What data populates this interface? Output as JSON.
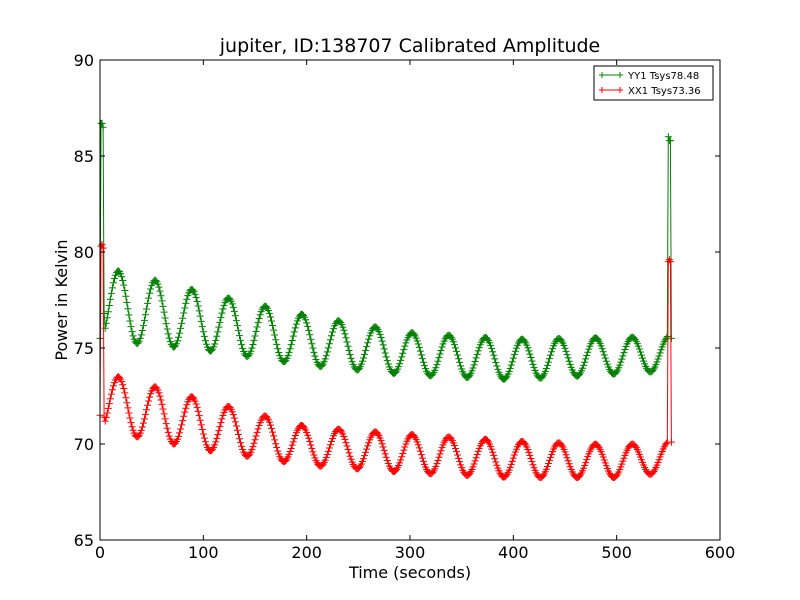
{
  "chart_data": {
    "type": "line",
    "title": "jupiter, ID:138707 Calibrated Amplitude",
    "xlabel": "Time (seconds)",
    "ylabel": "Power in Kelvin",
    "xlim": [
      0,
      600
    ],
    "ylim": [
      65,
      90
    ],
    "xticks": [
      "0",
      "100",
      "200",
      "300",
      "400",
      "500",
      "600"
    ],
    "yticks": [
      "65",
      "70",
      "75",
      "80",
      "85",
      "90"
    ],
    "grid": false,
    "legend_position": "top-right",
    "marker": "+",
    "series": [
      {
        "name": "YY1 Tsys78.48",
        "color": "#008000",
        "start_spike": [
          [
            0,
            75.5
          ],
          [
            1,
            86.7
          ],
          [
            2,
            86.7
          ],
          [
            3,
            86.5
          ],
          [
            4,
            76.8
          ]
        ],
        "end_spike": [
          [
            549,
            75.6
          ],
          [
            550,
            86.0
          ],
          [
            551,
            85.8
          ],
          [
            552,
            85.8
          ],
          [
            553,
            75.5
          ]
        ],
        "oscillation": {
          "x_start": 4,
          "x_end": 548,
          "period": 35.5,
          "phase_peak_x": 18,
          "baseline": [
            [
              4,
              77.3
            ],
            [
              100,
              76.4
            ],
            [
              200,
              75.4
            ],
            [
              300,
              74.7
            ],
            [
              400,
              74.4
            ],
            [
              500,
              74.6
            ],
            [
              548,
              74.7
            ]
          ],
          "amplitude": [
            [
              4,
              1.9
            ],
            [
              100,
              1.5
            ],
            [
              200,
              1.3
            ],
            [
              300,
              1.1
            ],
            [
              400,
              1.05
            ],
            [
              548,
              0.9
            ]
          ]
        }
      },
      {
        "name": "XX1 Tsys73.36",
        "color": "#ff0000",
        "start_spike": [
          [
            0,
            71.5
          ],
          [
            1,
            80.3
          ],
          [
            2,
            80.4
          ],
          [
            3,
            80.2
          ],
          [
            4,
            71.4
          ]
        ],
        "end_spike": [
          [
            549,
            70.1
          ],
          [
            550,
            79.5
          ],
          [
            551,
            79.6
          ],
          [
            552,
            79.5
          ],
          [
            553,
            70.1
          ]
        ],
        "oscillation": {
          "x_start": 4,
          "x_end": 548,
          "period": 35.5,
          "phase_peak_x": 18,
          "baseline": [
            [
              4,
              72.2
            ],
            [
              100,
              71.0
            ],
            [
              200,
              69.9
            ],
            [
              300,
              69.5
            ],
            [
              400,
              69.2
            ],
            [
              500,
              69.1
            ],
            [
              548,
              69.3
            ]
          ],
          "amplitude": [
            [
              4,
              1.5
            ],
            [
              100,
              1.3
            ],
            [
              200,
              1.0
            ],
            [
              300,
              1.0
            ],
            [
              400,
              0.95
            ],
            [
              548,
              0.8
            ]
          ]
        }
      }
    ]
  }
}
